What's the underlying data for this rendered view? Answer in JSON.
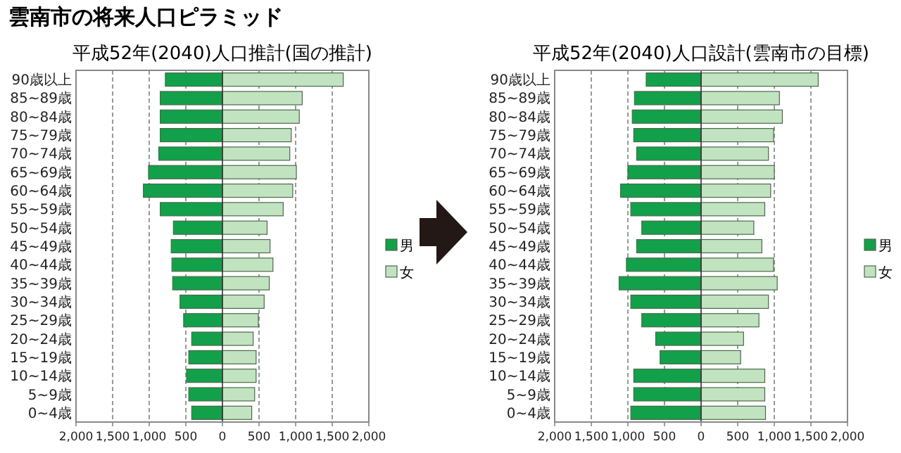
{
  "chart_data": [
    {
      "type": "bar",
      "title": "平成52年(2040)人口推計(国の推計)",
      "annotations": [
        "雲南市の将来人口ピラミッド"
      ],
      "orientation": "horizontal",
      "stacked": true,
      "grid": "x",
      "legend": "right",
      "xlim": [
        -2000,
        2000
      ],
      "xticks": [
        {
          "value": -2000,
          "label": "2,000"
        },
        {
          "value": -1500,
          "label": "1,500"
        },
        {
          "value": -1000,
          "label": "1,000"
        },
        {
          "value": -500,
          "label": "500"
        },
        {
          "value": 0,
          "label": "0"
        },
        {
          "value": 500,
          "label": "500"
        },
        {
          "value": 1000,
          "label": "1,000"
        },
        {
          "value": 1500,
          "label": "1,500"
        },
        {
          "value": 2000,
          "label": "2,000"
        }
      ],
      "categories": [
        "90歳以上",
        "85~89歳",
        "80~84歳",
        "75~79歳",
        "70~74歳",
        "65~69歳",
        "60~64歳",
        "55~59歳",
        "50~54歳",
        "45~49歳",
        "40~44歳",
        "35~39歳",
        "30~34歳",
        "25~29歳",
        "20~24歳",
        "15~19歳",
        "10~14歳",
        "5~9歳",
        "0~4歳"
      ],
      "series": [
        {
          "name": "男",
          "color": "#13a04a",
          "values": [
            -780,
            -850,
            -850,
            -850,
            -870,
            -1010,
            -1080,
            -850,
            -670,
            -700,
            -690,
            -680,
            -580,
            -530,
            -420,
            -460,
            -490,
            -460,
            -420
          ]
        },
        {
          "name": "女",
          "color": "#c2e3bf",
          "values": [
            1650,
            1090,
            1050,
            940,
            920,
            1010,
            960,
            830,
            610,
            650,
            690,
            640,
            570,
            490,
            420,
            460,
            460,
            440,
            400
          ]
        }
      ]
    },
    {
      "type": "bar",
      "title": "平成52年(2040)人口設計(雲南市の目標)",
      "orientation": "horizontal",
      "stacked": true,
      "grid": "x",
      "legend": "right",
      "xlim": [
        -2000,
        2000
      ],
      "xticks": [
        {
          "value": -2000,
          "label": "2,000"
        },
        {
          "value": -1500,
          "label": "1,500"
        },
        {
          "value": -1000,
          "label": "1,000"
        },
        {
          "value": -500,
          "label": "500"
        },
        {
          "value": 0,
          "label": "0"
        },
        {
          "value": 500,
          "label": "500"
        },
        {
          "value": 1000,
          "label": "1,000"
        },
        {
          "value": 1500,
          "label": "1,500"
        },
        {
          "value": 2000,
          "label": "2,000"
        }
      ],
      "categories": [
        "90歳以上",
        "85~89歳",
        "80~84歳",
        "75~79歳",
        "70~74歳",
        "65~69歳",
        "60~64歳",
        "55~59歳",
        "50~54歳",
        "45~49歳",
        "40~44歳",
        "35~39歳",
        "30~34歳",
        "25~29歳",
        "20~24歳",
        "15~19歳",
        "10~14歳",
        "5~9歳",
        "0~4歳"
      ],
      "series": [
        {
          "name": "男",
          "color": "#13a04a",
          "values": [
            -750,
            -910,
            -940,
            -920,
            -880,
            -1000,
            -1100,
            -960,
            -810,
            -880,
            -1020,
            -1120,
            -960,
            -810,
            -620,
            -560,
            -920,
            -920,
            -960
          ]
        },
        {
          "name": "女",
          "color": "#c2e3bf",
          "values": [
            1600,
            1070,
            1110,
            990,
            920,
            1000,
            950,
            870,
            720,
            830,
            990,
            1040,
            920,
            790,
            580,
            540,
            870,
            870,
            880
          ]
        }
      ]
    }
  ]
}
